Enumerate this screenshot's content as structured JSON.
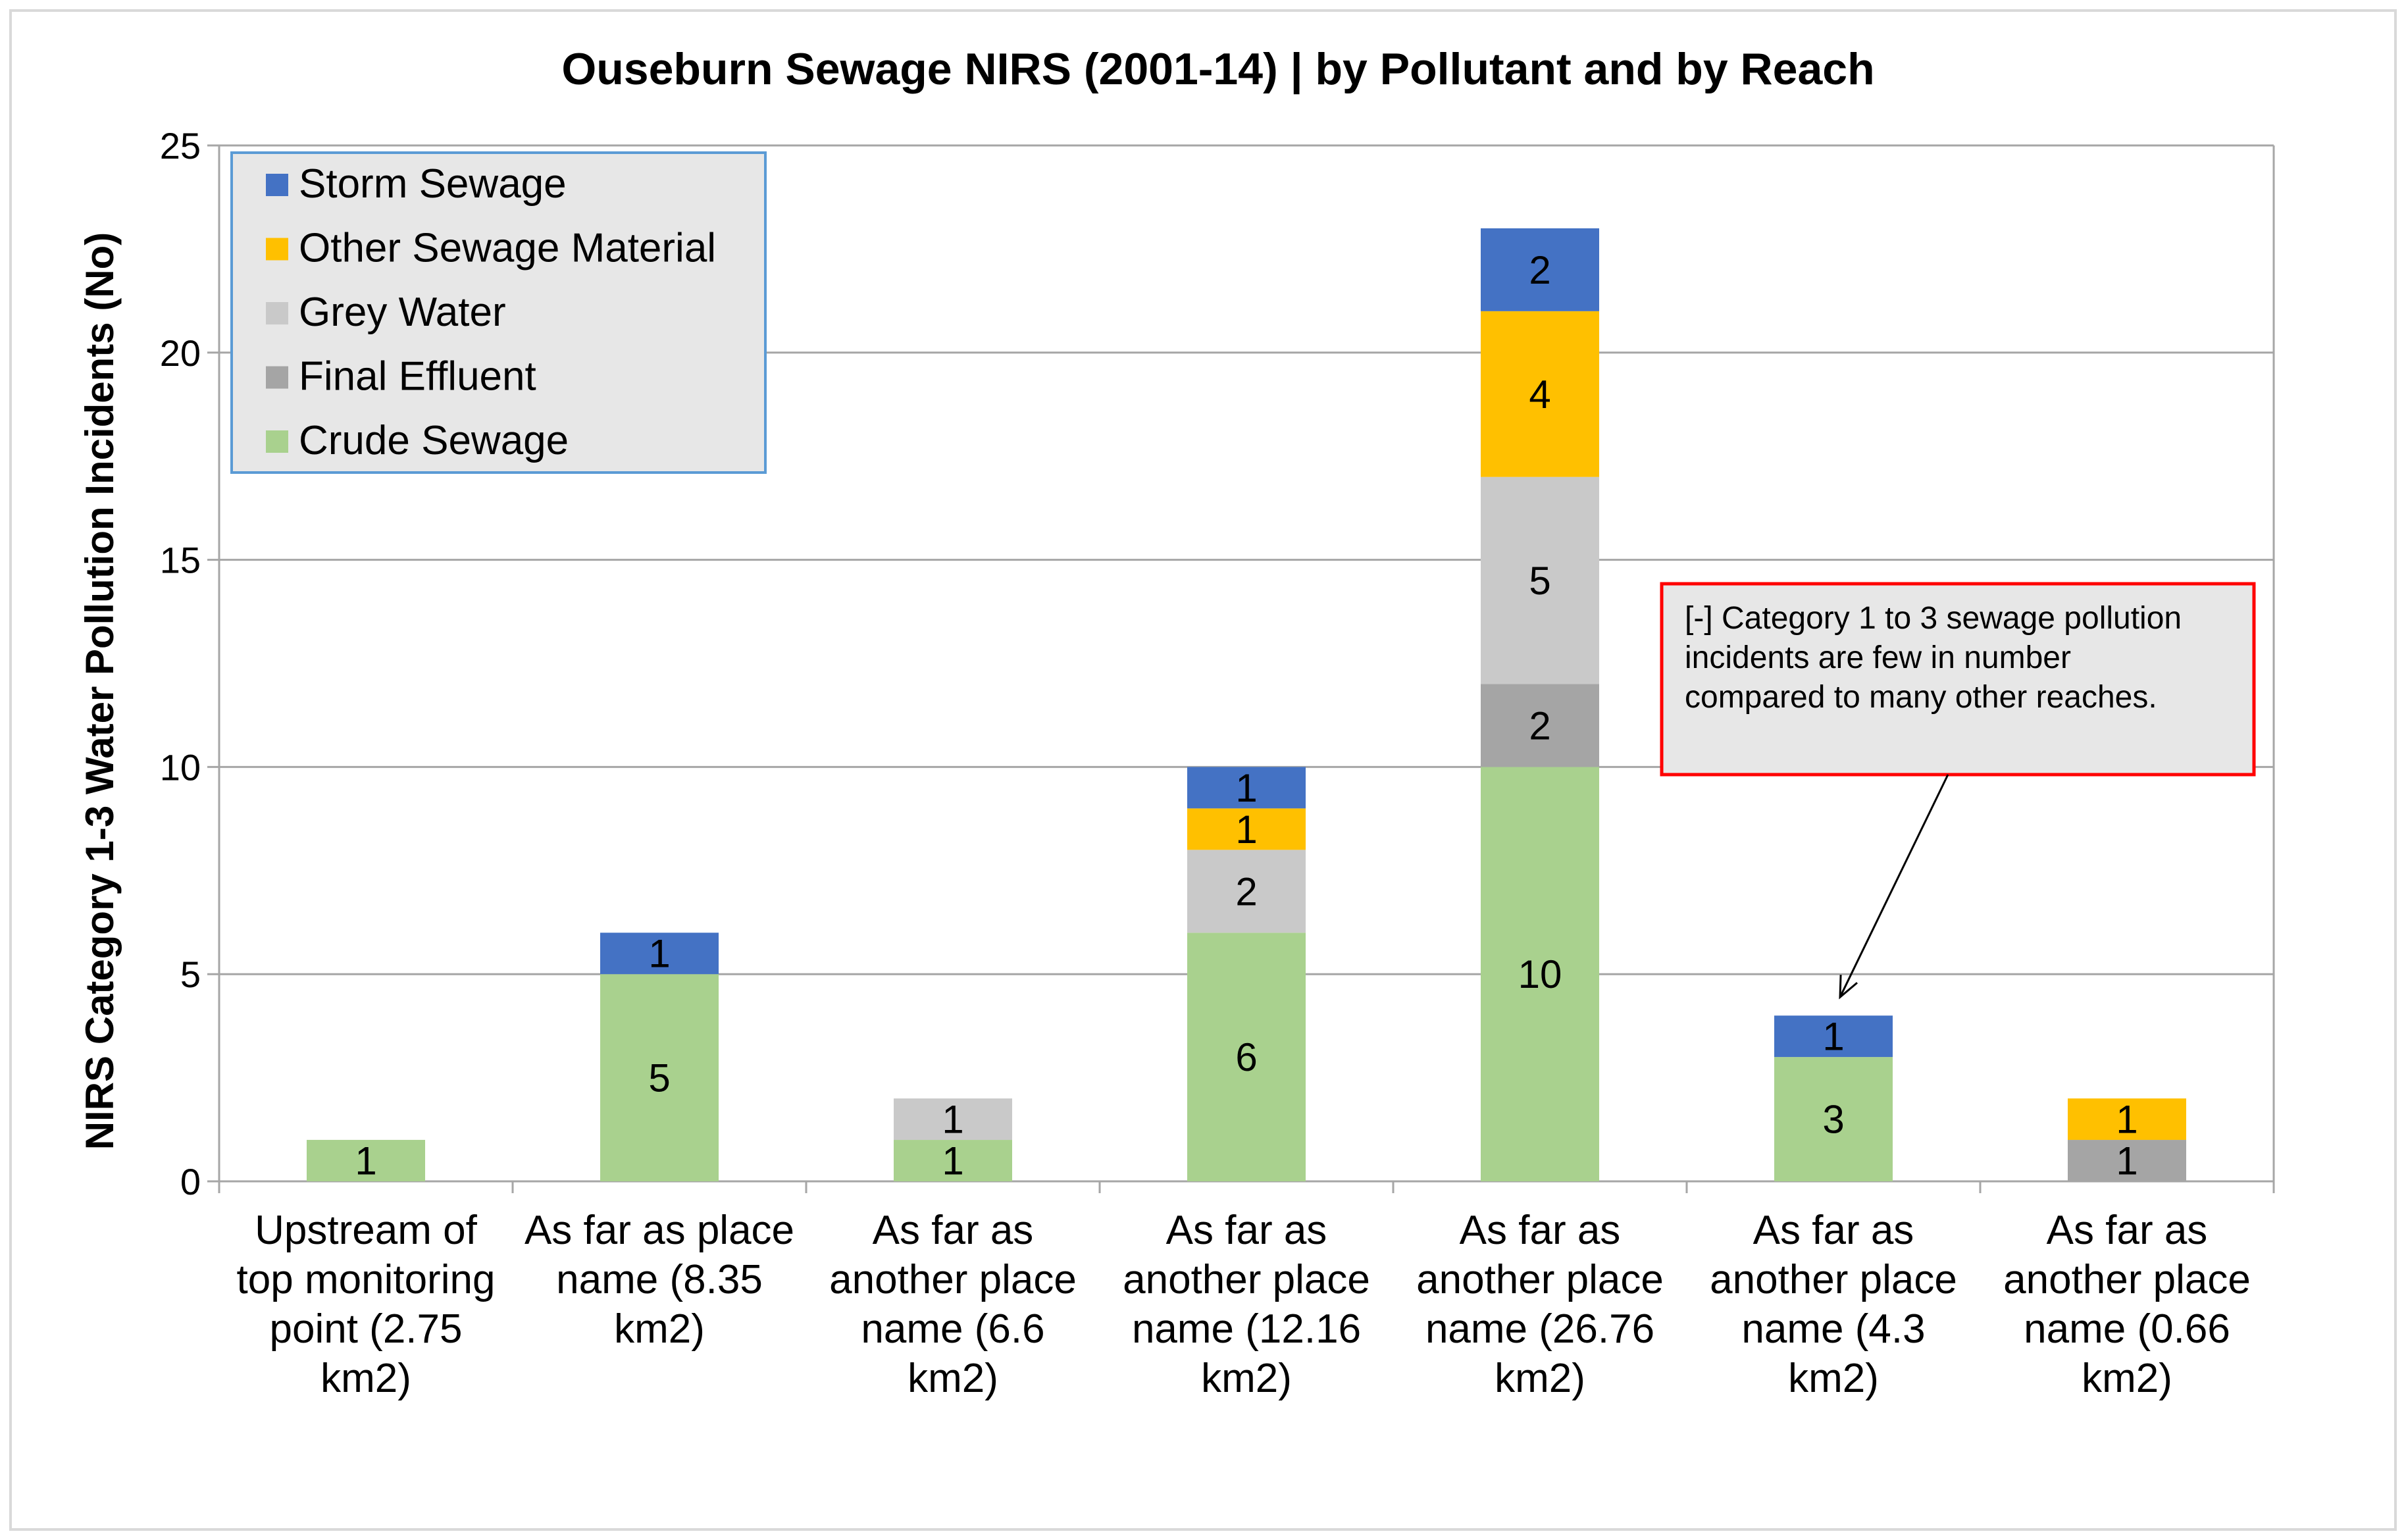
{
  "chart_data": {
    "type": "bar",
    "stacked": true,
    "title": "Ouseburn Sewage NIRS (2001-14) | by Pollutant and by Reach",
    "ylabel": "NIRS Category 1-3 Water Pollution Incidents (No)",
    "xlabel": "",
    "ylim": [
      0,
      25
    ],
    "yticks": [
      0,
      5,
      10,
      15,
      20,
      25
    ],
    "grid": true,
    "legend_position": "top-left",
    "categories": [
      [
        "Upstream of",
        "top monitoring",
        "point (2.75",
        "km2)"
      ],
      [
        "As far as place",
        "name (8.35",
        "km2)"
      ],
      [
        "As far as",
        "another place",
        "name (6.6",
        "km2)"
      ],
      [
        "As far as",
        "another place",
        "name (12.16",
        "km2)"
      ],
      [
        "As far as",
        "another place",
        "name (26.76",
        "km2)"
      ],
      [
        "As far as",
        "another place",
        "name (4.3",
        "km2)"
      ],
      [
        "As far as",
        "another place",
        "name (0.66",
        "km2)"
      ]
    ],
    "series": [
      {
        "name": "Crude Sewage",
        "color": "#a9d18e",
        "values": [
          1,
          5,
          1,
          6,
          10,
          3,
          0
        ]
      },
      {
        "name": "Final Effluent",
        "color": "#a5a5a5",
        "values": [
          0,
          0,
          0,
          0,
          2,
          0,
          1
        ]
      },
      {
        "name": "Grey Water",
        "color": "#c9c9c9",
        "values": [
          0,
          0,
          1,
          2,
          5,
          0,
          0
        ]
      },
      {
        "name": "Other Sewage Material",
        "color": "#ffc000",
        "values": [
          0,
          0,
          0,
          1,
          4,
          0,
          1
        ]
      },
      {
        "name": "Storm Sewage",
        "color": "#4472c4",
        "values": [
          0,
          1,
          0,
          1,
          2,
          1,
          0
        ]
      }
    ],
    "legend_order": [
      "Storm Sewage",
      "Other Sewage Material",
      "Grey Water",
      "Final Effluent",
      "Crude Sewage"
    ],
    "annotation": {
      "lines": [
        "[-] Category 1 to 3 sewage pollution",
        "incidents are few in number",
        "compared to many other reaches."
      ],
      "points_to_category_index": 5,
      "border_color": "#ff0000"
    }
  }
}
